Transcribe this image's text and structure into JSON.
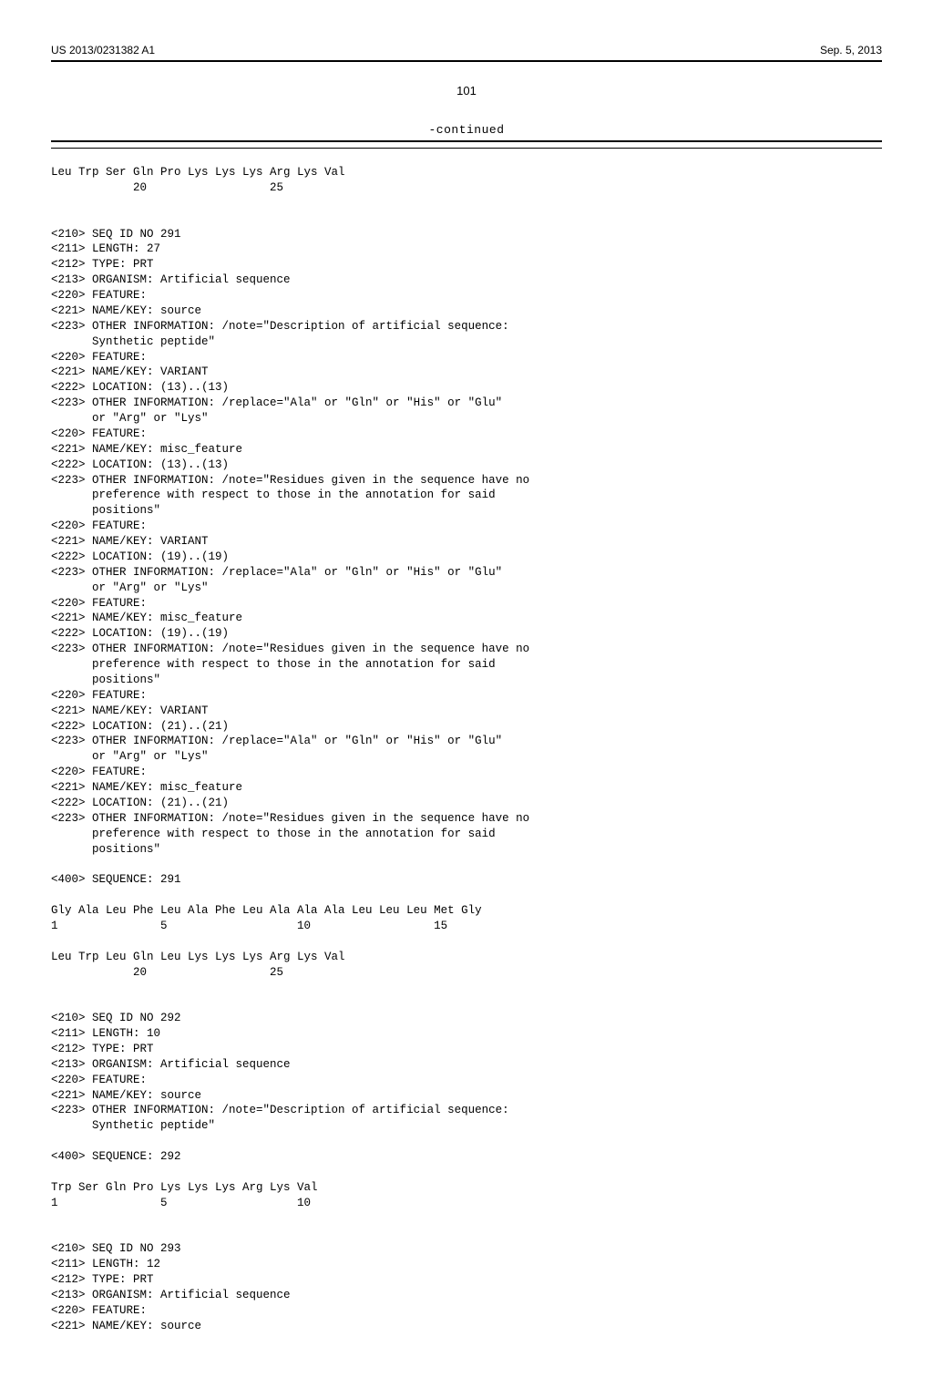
{
  "header": {
    "pub_id": "US 2013/0231382 A1",
    "date": "Sep. 5, 2013"
  },
  "page_number": "101",
  "continued_label": "-continued",
  "sequence_text": "Leu Trp Ser Gln Pro Lys Lys Lys Arg Lys Val\n            20                  25\n\n\n<210> SEQ ID NO 291\n<211> LENGTH: 27\n<212> TYPE: PRT\n<213> ORGANISM: Artificial sequence\n<220> FEATURE:\n<221> NAME/KEY: source\n<223> OTHER INFORMATION: /note=\"Description of artificial sequence:\n      Synthetic peptide\"\n<220> FEATURE:\n<221> NAME/KEY: VARIANT\n<222> LOCATION: (13)..(13)\n<223> OTHER INFORMATION: /replace=\"Ala\" or \"Gln\" or \"His\" or \"Glu\"\n      or \"Arg\" or \"Lys\"\n<220> FEATURE:\n<221> NAME/KEY: misc_feature\n<222> LOCATION: (13)..(13)\n<223> OTHER INFORMATION: /note=\"Residues given in the sequence have no\n      preference with respect to those in the annotation for said\n      positions\"\n<220> FEATURE:\n<221> NAME/KEY: VARIANT\n<222> LOCATION: (19)..(19)\n<223> OTHER INFORMATION: /replace=\"Ala\" or \"Gln\" or \"His\" or \"Glu\"\n      or \"Arg\" or \"Lys\"\n<220> FEATURE:\n<221> NAME/KEY: misc_feature\n<222> LOCATION: (19)..(19)\n<223> OTHER INFORMATION: /note=\"Residues given in the sequence have no\n      preference with respect to those in the annotation for said\n      positions\"\n<220> FEATURE:\n<221> NAME/KEY: VARIANT\n<222> LOCATION: (21)..(21)\n<223> OTHER INFORMATION: /replace=\"Ala\" or \"Gln\" or \"His\" or \"Glu\"\n      or \"Arg\" or \"Lys\"\n<220> FEATURE:\n<221> NAME/KEY: misc_feature\n<222> LOCATION: (21)..(21)\n<223> OTHER INFORMATION: /note=\"Residues given in the sequence have no\n      preference with respect to those in the annotation for said\n      positions\"\n\n<400> SEQUENCE: 291\n\nGly Ala Leu Phe Leu Ala Phe Leu Ala Ala Ala Leu Leu Leu Met Gly\n1               5                   10                  15\n\nLeu Trp Leu Gln Leu Lys Lys Lys Arg Lys Val\n            20                  25\n\n\n<210> SEQ ID NO 292\n<211> LENGTH: 10\n<212> TYPE: PRT\n<213> ORGANISM: Artificial sequence\n<220> FEATURE:\n<221> NAME/KEY: source\n<223> OTHER INFORMATION: /note=\"Description of artificial sequence:\n      Synthetic peptide\"\n\n<400> SEQUENCE: 292\n\nTrp Ser Gln Pro Lys Lys Lys Arg Lys Val\n1               5                   10\n\n\n<210> SEQ ID NO 293\n<211> LENGTH: 12\n<212> TYPE: PRT\n<213> ORGANISM: Artificial sequence\n<220> FEATURE:\n<221> NAME/KEY: source"
}
